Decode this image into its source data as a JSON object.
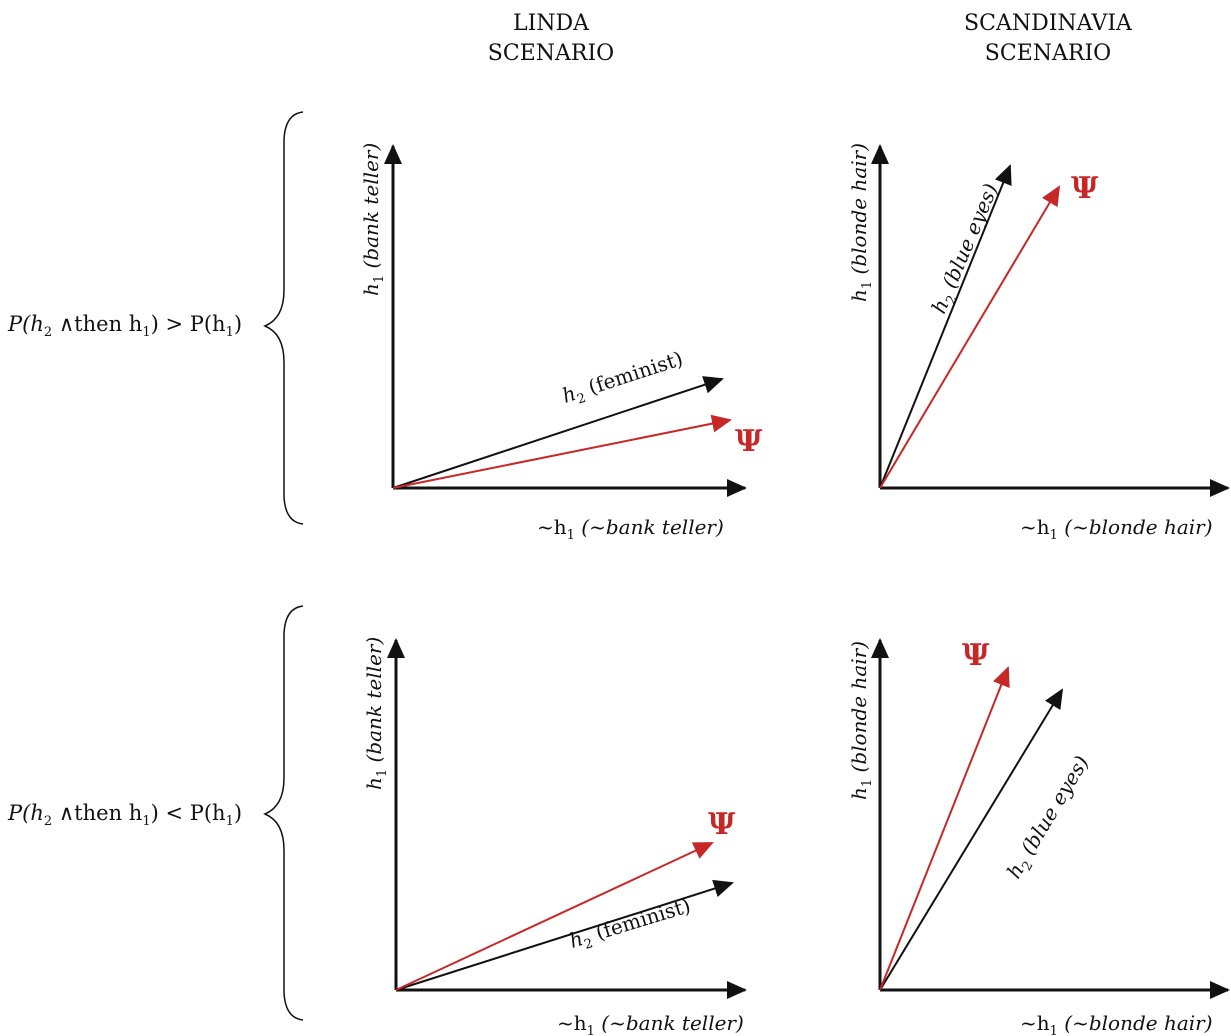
{
  "headers": {
    "linda": [
      "LINDA",
      "SCENARIO"
    ],
    "scandinavia": [
      "SCANDINAVIA",
      "SCENARIO"
    ]
  },
  "conditions": {
    "top": {
      "pre": "P(h",
      "sub1": "2",
      "mid": " ∧then h",
      "sub2": "1",
      "post": ") > P(h",
      "sub3": "1",
      "end": ")"
    },
    "bottom": {
      "pre": "P(h",
      "sub1": "2",
      "mid": " ∧then h",
      "sub2": "1",
      "post": ") < P(h",
      "sub3": "1",
      "end": ")"
    }
  },
  "labels": {
    "linda_y": {
      "h": "h",
      "sub": "1",
      "rest": " (bank teller)"
    },
    "linda_x": {
      "pre": "~h",
      "sub": "1",
      "rest": " (~bank teller)"
    },
    "linda_h2": {
      "h": "h",
      "sub": "2",
      "rest": " (feminist)"
    },
    "scand_y": {
      "h": "h",
      "sub": "1",
      "rest": " (blonde hair)"
    },
    "scand_x": {
      "pre": "~h",
      "sub": "1",
      "rest": " (~blonde hair)"
    },
    "scand_h2": {
      "h": "h",
      "sub": "2",
      "rest": " (blue eyes)"
    },
    "psi": "Ψ"
  },
  "colors": {
    "axis": "#111111",
    "h2_vector": "#111111",
    "psi_vector": "#c62828"
  }
}
